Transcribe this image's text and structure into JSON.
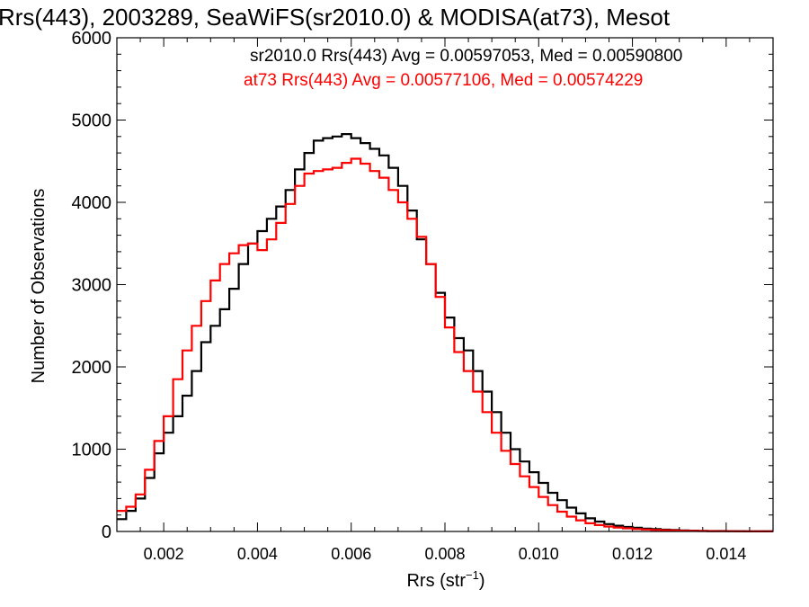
{
  "chart_data": {
    "type": "line",
    "step": true,
    "title": "Rrs(443), 2003289, SeaWiFS(sr2010.0) & MODISA(at73), Mesot",
    "xlabel": "Rrs (str",
    "xlabel_sup": "−1",
    "xlabel_close": ")",
    "ylabel": "Number of Observations",
    "xlim": [
      0.001,
      0.015
    ],
    "ylim": [
      0,
      6000
    ],
    "xticks": [
      0.002,
      0.004,
      0.006,
      0.008,
      0.01,
      0.012,
      0.014
    ],
    "xtick_labels": [
      "0.002",
      "0.004",
      "0.006",
      "0.008",
      "0.010",
      "0.012",
      "0.014"
    ],
    "yticks": [
      0,
      1000,
      2000,
      3000,
      4000,
      5000,
      6000
    ],
    "ytick_labels": [
      "0",
      "1000",
      "2000",
      "3000",
      "4000",
      "5000",
      "6000"
    ],
    "grid": false,
    "annotations": [
      {
        "text": "sr2010.0 Rrs(443) Avg = 0.00597053, Med = 0.00590800",
        "color": "#000000"
      },
      {
        "text": "at73 Rrs(443) Avg = 0.00577106, Med = 0.00574229",
        "color": "#ff0000"
      }
    ],
    "series": [
      {
        "color": "#000000",
        "points": [
          [
            0.001,
            150
          ],
          [
            0.0012,
            250
          ],
          [
            0.0014,
            400
          ],
          [
            0.0016,
            650
          ],
          [
            0.0018,
            950
          ],
          [
            0.002,
            1200
          ],
          [
            0.0022,
            1400
          ],
          [
            0.0024,
            1650
          ],
          [
            0.0026,
            1950
          ],
          [
            0.0028,
            2300
          ],
          [
            0.003,
            2500
          ],
          [
            0.0032,
            2700
          ],
          [
            0.0034,
            2950
          ],
          [
            0.0036,
            3250
          ],
          [
            0.0038,
            3500
          ],
          [
            0.004,
            3650
          ],
          [
            0.0042,
            3800
          ],
          [
            0.0044,
            3950
          ],
          [
            0.0046,
            4150
          ],
          [
            0.0048,
            4400
          ],
          [
            0.005,
            4600
          ],
          [
            0.0052,
            4750
          ],
          [
            0.0054,
            4780
          ],
          [
            0.0056,
            4800
          ],
          [
            0.0058,
            4830
          ],
          [
            0.006,
            4780
          ],
          [
            0.0062,
            4720
          ],
          [
            0.0064,
            4650
          ],
          [
            0.0066,
            4570
          ],
          [
            0.0068,
            4420
          ],
          [
            0.007,
            4200
          ],
          [
            0.0072,
            3900
          ],
          [
            0.0074,
            3550
          ],
          [
            0.0076,
            3250
          ],
          [
            0.0078,
            2900
          ],
          [
            0.008,
            2600
          ],
          [
            0.0082,
            2350
          ],
          [
            0.0084,
            2200
          ],
          [
            0.0086,
            1950
          ],
          [
            0.0088,
            1700
          ],
          [
            0.009,
            1450
          ],
          [
            0.0092,
            1200
          ],
          [
            0.0094,
            1000
          ],
          [
            0.0096,
            850
          ],
          [
            0.0098,
            720
          ],
          [
            0.01,
            590
          ],
          [
            0.0102,
            470
          ],
          [
            0.0104,
            380
          ],
          [
            0.0106,
            290
          ],
          [
            0.0108,
            220
          ],
          [
            0.011,
            160
          ],
          [
            0.0112,
            120
          ],
          [
            0.0114,
            90
          ],
          [
            0.0116,
            70
          ],
          [
            0.0118,
            55
          ],
          [
            0.012,
            45
          ],
          [
            0.0122,
            35
          ],
          [
            0.0124,
            28
          ],
          [
            0.0126,
            22
          ],
          [
            0.0128,
            17
          ],
          [
            0.013,
            13
          ],
          [
            0.0132,
            10
          ],
          [
            0.0134,
            8
          ],
          [
            0.0136,
            6
          ],
          [
            0.0138,
            5
          ],
          [
            0.014,
            4
          ],
          [
            0.0142,
            3
          ],
          [
            0.0144,
            2
          ],
          [
            0.0146,
            2
          ],
          [
            0.0148,
            1
          ],
          [
            0.015,
            1
          ]
        ]
      },
      {
        "color": "#ff0000",
        "points": [
          [
            0.001,
            250
          ],
          [
            0.0012,
            300
          ],
          [
            0.0014,
            450
          ],
          [
            0.0016,
            750
          ],
          [
            0.0018,
            1100
          ],
          [
            0.002,
            1400
          ],
          [
            0.0022,
            1850
          ],
          [
            0.0024,
            2200
          ],
          [
            0.0026,
            2500
          ],
          [
            0.0028,
            2800
          ],
          [
            0.003,
            3050
          ],
          [
            0.0032,
            3250
          ],
          [
            0.0034,
            3380
          ],
          [
            0.0036,
            3480
          ],
          [
            0.0038,
            3500
          ],
          [
            0.004,
            3420
          ],
          [
            0.0042,
            3550
          ],
          [
            0.0044,
            3750
          ],
          [
            0.0046,
            3980
          ],
          [
            0.0048,
            4200
          ],
          [
            0.005,
            4350
          ],
          [
            0.0052,
            4380
          ],
          [
            0.0054,
            4400
          ],
          [
            0.0056,
            4420
          ],
          [
            0.0058,
            4480
          ],
          [
            0.006,
            4530
          ],
          [
            0.0062,
            4470
          ],
          [
            0.0064,
            4380
          ],
          [
            0.0066,
            4300
          ],
          [
            0.0068,
            4150
          ],
          [
            0.007,
            4000
          ],
          [
            0.0072,
            3800
          ],
          [
            0.0074,
            3580
          ],
          [
            0.0076,
            3250
          ],
          [
            0.0078,
            2850
          ],
          [
            0.008,
            2480
          ],
          [
            0.0082,
            2180
          ],
          [
            0.0084,
            1950
          ],
          [
            0.0086,
            1700
          ],
          [
            0.0088,
            1450
          ],
          [
            0.009,
            1200
          ],
          [
            0.0092,
            980
          ],
          [
            0.0094,
            820
          ],
          [
            0.0096,
            670
          ],
          [
            0.0098,
            540
          ],
          [
            0.01,
            420
          ],
          [
            0.0102,
            320
          ],
          [
            0.0104,
            240
          ],
          [
            0.0106,
            180
          ],
          [
            0.0108,
            135
          ],
          [
            0.011,
            100
          ],
          [
            0.0112,
            78
          ],
          [
            0.0114,
            60
          ],
          [
            0.0116,
            48
          ],
          [
            0.0118,
            38
          ],
          [
            0.012,
            30
          ],
          [
            0.0122,
            24
          ],
          [
            0.0124,
            19
          ],
          [
            0.0126,
            15
          ],
          [
            0.0128,
            12
          ],
          [
            0.013,
            9
          ],
          [
            0.0132,
            7
          ],
          [
            0.0134,
            5
          ],
          [
            0.0136,
            4
          ],
          [
            0.0138,
            3
          ],
          [
            0.014,
            3
          ],
          [
            0.0142,
            2
          ],
          [
            0.0144,
            2
          ],
          [
            0.0146,
            1
          ],
          [
            0.0148,
            1
          ],
          [
            0.015,
            1
          ]
        ]
      }
    ]
  }
}
